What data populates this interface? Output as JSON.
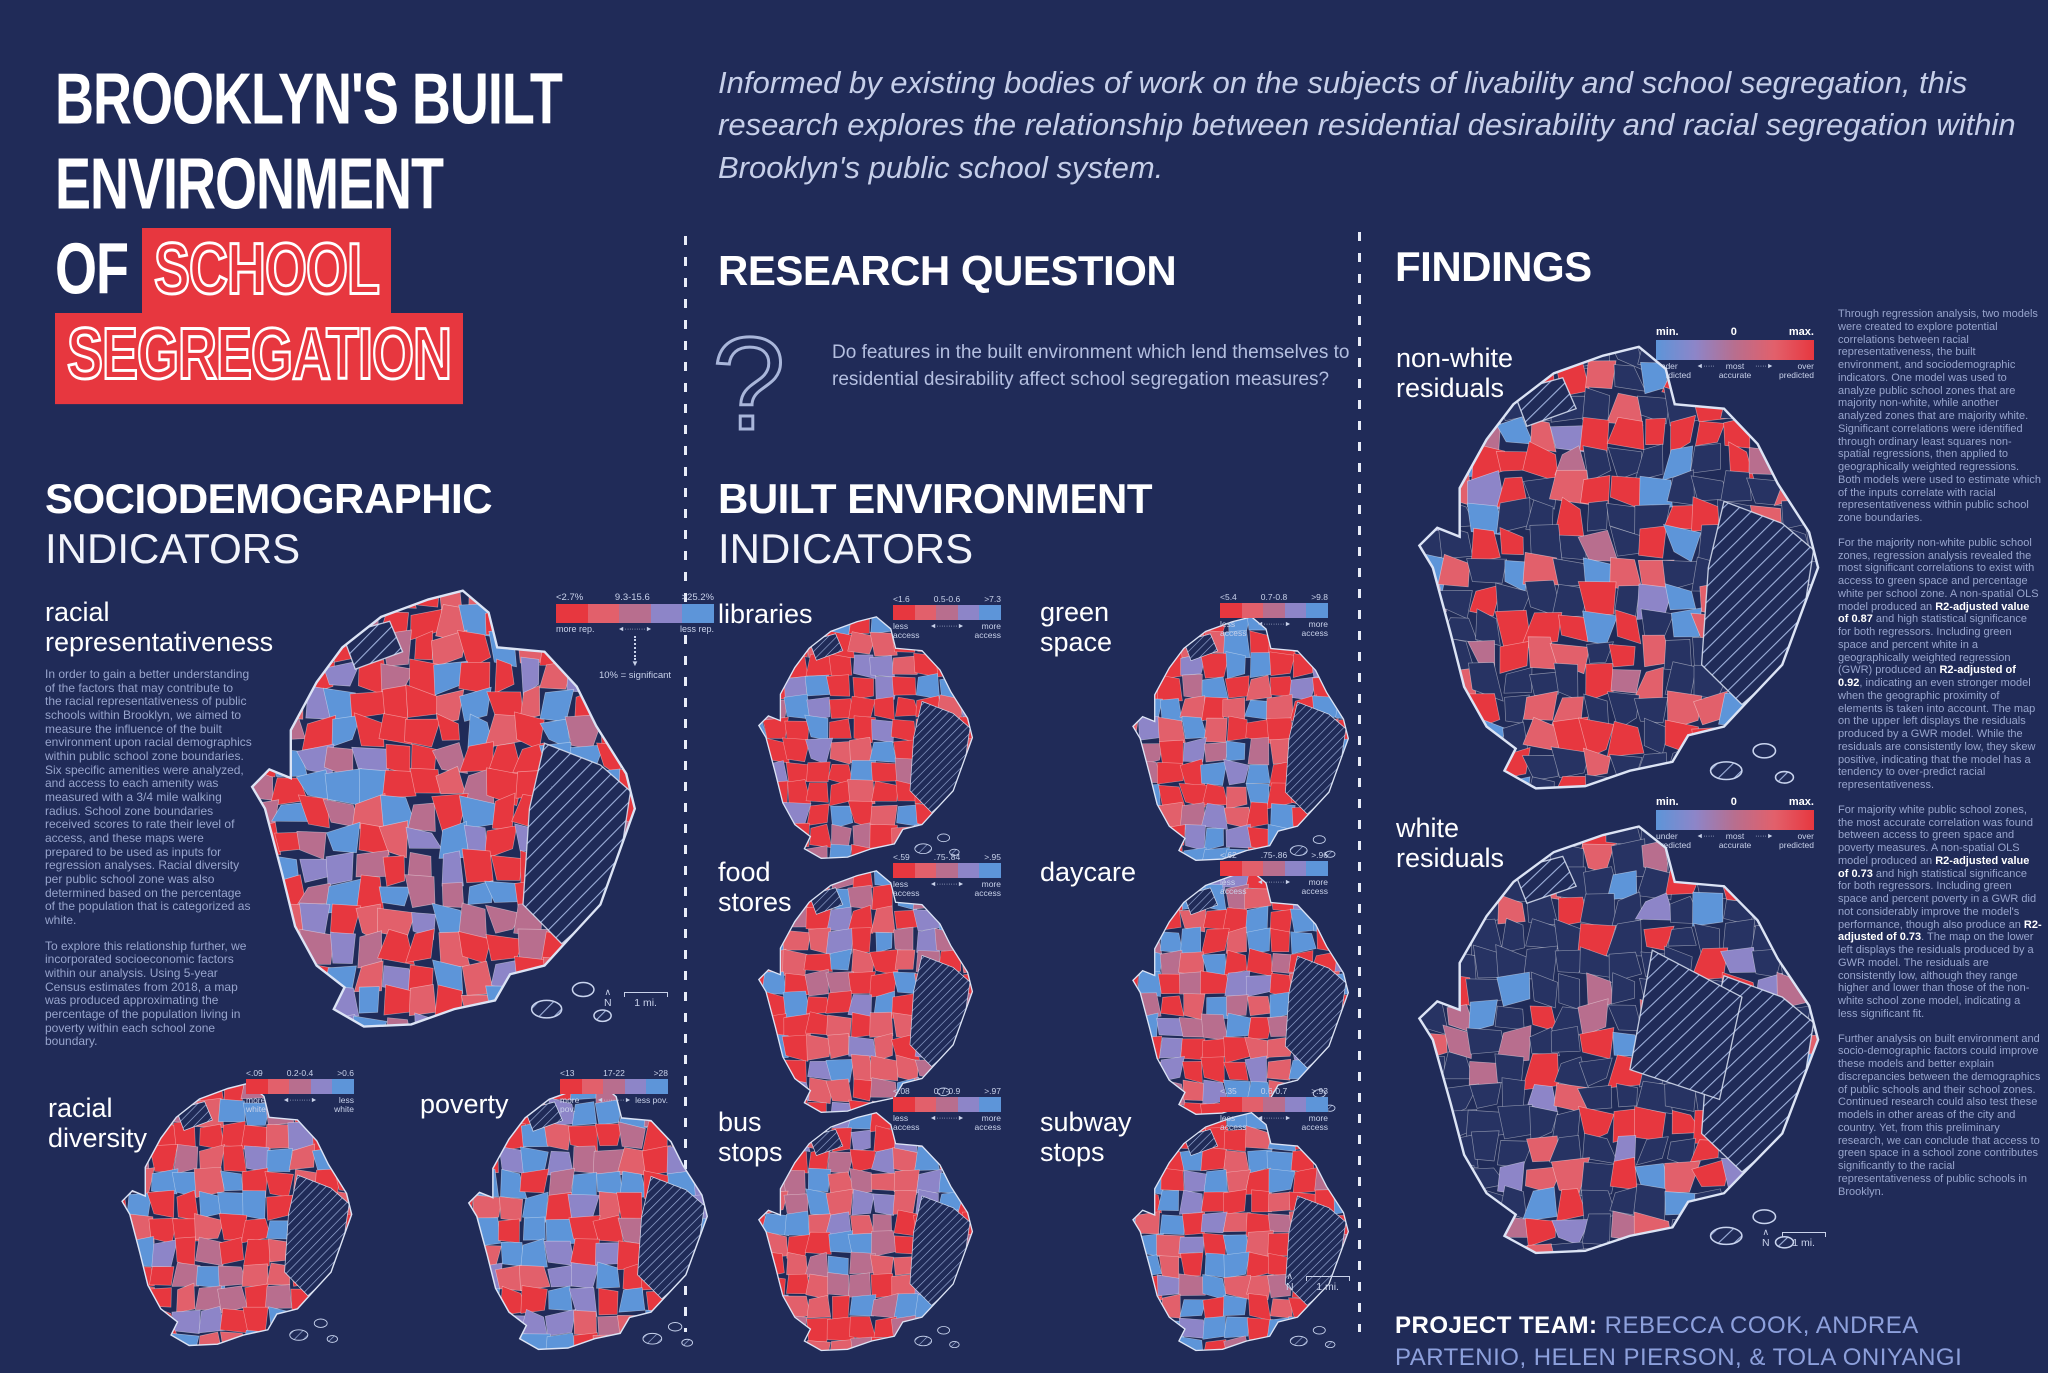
{
  "colors": {
    "background": "#202b58",
    "navy_cell": "#273363",
    "red": "#e7373f",
    "red_light": "#e2606b",
    "mauve": "#b86e8e",
    "purple": "#8d85c8",
    "blue": "#5d95d9",
    "text_light": "#98a5cd",
    "white": "#ffffff"
  },
  "ui": {
    "north": "N",
    "scale_label": "1 mi.",
    "arrow": "◄·········►",
    "arrow_left": "◄·····",
    "arrow_right": "·····►",
    "question_mark": "?"
  },
  "title": {
    "line1": "BROOKLYN'S BUILT",
    "line2": "ENVIRONMENT",
    "of_word": "OF ",
    "highlight1": "SCHOOL",
    "highlight2": "SEGREGATION"
  },
  "intro": "Informed by existing bodies of work on the subjects of livability and school segregation, this research explores the relationship between residential desirability and racial segregation within Brooklyn's public school system.",
  "research_question": {
    "heading": "RESEARCH QUESTION",
    "text": "Do features in the built environment which lend themselves to residential desirability affect school segregation measures?"
  },
  "sociodemographic": {
    "heading1": "SOCIODEMOGRAPHIC",
    "heading2": "INDICATORS",
    "paragraphs": [
      "In order to gain a better understanding of the factors that may contribute to the racial representativeness of public schools within Brooklyn, we aimed to measure the influence of the built environment upon racial demographics within public school zone boundaries. Six specific amenities were analyzed, and access to each amenity was measured with a 3/4 mile walking radius. School zone boundaries received scores to rate their level of access, and these maps were prepared to be used as inputs for regression analyses. Racial diversity per public school zone was also determined based on the percentage of the population that is categorized as white.",
      "To explore this relationship further, we incorporated socioeconomic factors within our analysis. Using 5-year Census estimates from 2018, a map was produced approximating the percentage of the population living in poverty within each school zone boundary."
    ],
    "maps": {
      "racial_representativeness": {
        "label1": "racial",
        "label2": "representativeness",
        "legend": {
          "ticks": [
            "<2.7%",
            "9.3-15.6",
            ">25.2%"
          ],
          "left": "more rep.",
          "right": "less rep.",
          "note": "10% = significant"
        }
      },
      "racial_diversity": {
        "label1": "racial",
        "label2": "diversity",
        "legend": {
          "ticks": [
            "<.09",
            "0.2-0.4",
            ">0.6"
          ],
          "left": "more white",
          "right": "less white"
        }
      },
      "poverty": {
        "label1": "poverty",
        "legend": {
          "ticks": [
            "<13",
            "17-22",
            ">28"
          ],
          "left": "more pov.",
          "right": "less pov."
        }
      }
    }
  },
  "built_environment": {
    "heading1": "BUILT ENVIRONMENT",
    "heading2": "INDICATORS",
    "maps": [
      {
        "label1": "libraries",
        "label2": "",
        "legend": {
          "ticks": [
            "<1.6",
            "0.5-0.6",
            ">7.3"
          ],
          "left": "less access",
          "right": "more access"
        }
      },
      {
        "label1": "green",
        "label2": "space",
        "legend": {
          "ticks": [
            "<5.4",
            "0.7-0.8",
            ">9.8"
          ],
          "left": "less access",
          "right": "more access"
        }
      },
      {
        "label1": "food",
        "label2": "stores",
        "legend": {
          "ticks": [
            "<.59",
            ".75-.84",
            ">.95"
          ],
          "left": "less access",
          "right": "more access"
        }
      },
      {
        "label1": "daycare",
        "label2": "",
        "legend": {
          "ticks": [
            "<.62",
            ".75-.86",
            ">.96"
          ],
          "left": "less access",
          "right": "more access"
        }
      },
      {
        "label1": "bus",
        "label2": "stops",
        "legend": {
          "ticks": [
            "<.08",
            "0.7-0.9",
            ">.97"
          ],
          "left": "less access",
          "right": "more access"
        }
      },
      {
        "label1": "subway",
        "label2": "stops",
        "legend": {
          "ticks": [
            "<.35",
            "0.6-0.7",
            ">.93"
          ],
          "left": "less access",
          "right": "more access"
        }
      }
    ]
  },
  "findings": {
    "heading": "FINDINGS",
    "maps": [
      {
        "label1": "non-white",
        "label2": "residuals"
      },
      {
        "label1": "white",
        "label2": "residuals"
      }
    ],
    "legend": {
      "min": "min.",
      "zero": "0",
      "max": "max.",
      "under": "under predicted",
      "mid": "most accurate",
      "over": "over predicted"
    },
    "paragraphs": [
      [
        {
          "t": "Through regression analysis, two models were created to explore potential correlations between racial representativeness, the built environment, and sociodemographic indicators. One model was used to analyze public school zones that are majority non-white, while another analyzed zones that are majority white. Significant correlations were identified through ordinary least squares non-spatial regressions, then applied to geographically weighted regressions. Both models were used to estimate which of the inputs correlate with racial representativeness within public school zone boundaries.",
          "b": false
        }
      ],
      [
        {
          "t": "For the majority non-white public school zones, regression analysis revealed the most significant correlations to exist with access to green space and percentage white per school zone. A non-spatial OLS model produced an ",
          "b": false
        },
        {
          "t": "R2-adjusted value of 0.87",
          "b": true
        },
        {
          "t": " and high statistical significance for both regressors. Including green space and percent white in a geographically weighted regression (GWR) produced an ",
          "b": false
        },
        {
          "t": "R2-adjusted of 0.92",
          "b": true
        },
        {
          "t": ", indicating an even stronger model when the geographic proximity of elements is taken into account. The map on the upper left displays the residuals produced by a GWR model. While the residuals are consistently low, they skew positive, indicating that the model has a tendency to over-predict racial representativeness.",
          "b": false
        }
      ],
      [
        {
          "t": "For majority white public school zones, the most accurate correlation was found between access to green space and poverty measures. A non-spatial OLS model produced an ",
          "b": false
        },
        {
          "t": "R2-adjusted value of 0.73",
          "b": true
        },
        {
          "t": " and high statistical significance for both regressors. Including green space and percent poverty in a GWR did not considerably improve the model's performance, though also produce an ",
          "b": false
        },
        {
          "t": "R2-adjusted of 0.73",
          "b": true
        },
        {
          "t": ". The map on the lower left displays the residuals produced by a GWR model. The residuals are consistently low, although they range higher and lower than those of the non-white school zone model, indicating a less significant fit.",
          "b": false
        }
      ],
      [
        {
          "t": "Further analysis on built environment and socio-demographic factors could improve these models and better explain discrepancies between the demographics of public schools and their school zones. Continued research could also test these models in other areas of the city and country. Yet, from this preliminary research, we can conclude that access to green space in a school zone contributes significantly to the racial representativeness of public schools in Brooklyn.",
          "b": false
        }
      ]
    ]
  },
  "project_team": {
    "label": "PROJECT TEAM:",
    "names": " REBECCA COOK, ANDREA PARTENIO, HELEN PIERSON, & TOLA ONIYANGI"
  }
}
